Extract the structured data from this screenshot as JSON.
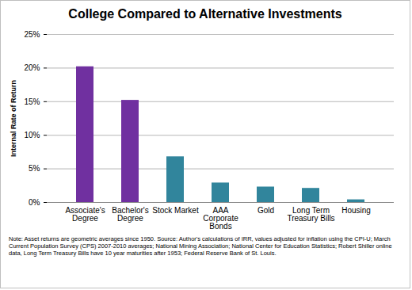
{
  "chart_data": {
    "type": "bar",
    "title": "College Compared to Alternative Investments",
    "y_label": "Internal Rate of Return",
    "categories": [
      "Associate's Degree",
      "Bachelor's Degree",
      "Stock Market",
      "AAA Corporate Bonds",
      "Gold",
      "Long Term Treasury Bills",
      "Housing"
    ],
    "values": [
      20.2,
      15.2,
      6.8,
      2.9,
      2.3,
      2.1,
      0.4
    ],
    "colors": [
      "#7030a0",
      "#7030a0",
      "#31859c",
      "#31859c",
      "#31859c",
      "#31859c",
      "#31859c"
    ],
    "ylim": [
      0,
      25
    ],
    "yticks": [
      {
        "value": 0,
        "label": "0%"
      },
      {
        "value": 5,
        "label": "5%"
      },
      {
        "value": 10,
        "label": "10%"
      },
      {
        "value": 15,
        "label": "15%"
      },
      {
        "value": 20,
        "label": "20%"
      },
      {
        "value": 25,
        "label": "25%"
      }
    ],
    "grid": true,
    "note": "Note: Asset returns  are geometric averages since 1950. Source: Author's calculations of IRR, values adjusted for inflation using the CPI-U; March Current Population Survey (CPS) 2007-2010 averages; National Mining Association; National Center for Education Statistics; Robert Shiller online data, Long Term Treasury Bills have 10 year maturities after 1953; Federal Reserve Bank of St. Louis."
  }
}
